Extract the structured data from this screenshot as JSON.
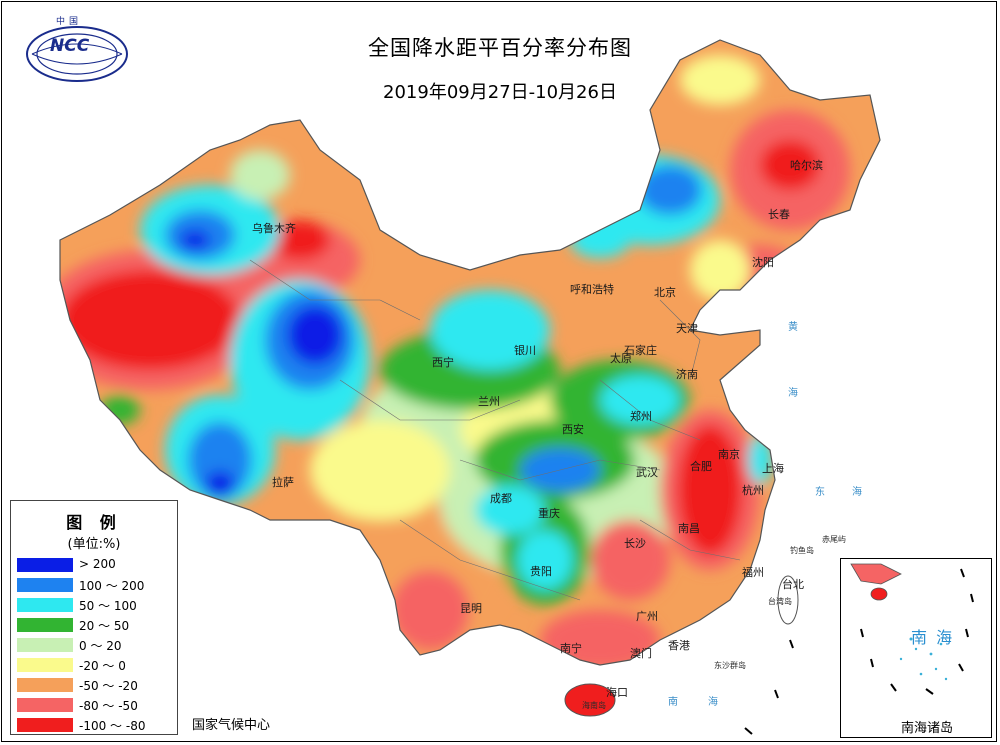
{
  "header": {
    "title": "全国降水距平百分率分布图",
    "subtitle": "2019年09月27日-10月26日"
  },
  "logo": {
    "label": "中国",
    "text": "NCC"
  },
  "legend": {
    "title": "图 例",
    "unit": "(单位:%)",
    "items": [
      {
        "label": "> 200",
        "color": "#0a1ee6"
      },
      {
        "label": "100 ～ 200",
        "color": "#1e82f0"
      },
      {
        "label": "50 ～ 100",
        "color": "#2ee8f0"
      },
      {
        "label": "20 ～ 50",
        "color": "#32b432"
      },
      {
        "label": "0 ～ 20",
        "color": "#c8f0b4"
      },
      {
        "label": "-20 ～ 0",
        "color": "#fafa8c"
      },
      {
        "label": "-50 ～ -20",
        "color": "#f5a05a"
      },
      {
        "label": "-80 ～ -50",
        "color": "#f56464"
      },
      {
        "label": "-100 ～ -80",
        "color": "#f01e1e"
      }
    ]
  },
  "source": "国家气候中心",
  "cities": [
    {
      "name": "乌鲁木齐"
    },
    {
      "name": "哈尔滨"
    },
    {
      "name": "长春"
    },
    {
      "name": "沈阳"
    },
    {
      "name": "北京"
    },
    {
      "name": "天津"
    },
    {
      "name": "呼和浩特"
    },
    {
      "name": "石家庄"
    },
    {
      "name": "太原"
    },
    {
      "name": "济南"
    },
    {
      "name": "银川"
    },
    {
      "name": "西宁"
    },
    {
      "name": "兰州"
    },
    {
      "name": "西安"
    },
    {
      "name": "郑州"
    },
    {
      "name": "合肥"
    },
    {
      "name": "南京"
    },
    {
      "name": "上海"
    },
    {
      "name": "杭州"
    },
    {
      "name": "武汉"
    },
    {
      "name": "成都"
    },
    {
      "name": "重庆"
    },
    {
      "name": "长沙"
    },
    {
      "name": "南昌"
    },
    {
      "name": "福州"
    },
    {
      "name": "台北"
    },
    {
      "name": "贵阳"
    },
    {
      "name": "昆明"
    },
    {
      "name": "拉萨"
    },
    {
      "name": "南宁"
    },
    {
      "name": "广州"
    },
    {
      "name": "香港"
    },
    {
      "name": "澳门"
    },
    {
      "name": "海口"
    }
  ],
  "seas": [
    {
      "name": "黄"
    },
    {
      "name": "海"
    },
    {
      "name": "东"
    },
    {
      "name": "海"
    },
    {
      "name": "南"
    },
    {
      "name": "海"
    }
  ],
  "islands": [
    {
      "name": "赤尾屿"
    },
    {
      "name": "钓鱼岛"
    },
    {
      "name": "台湾岛"
    },
    {
      "name": "东沙群岛"
    },
    {
      "name": "海南岛"
    }
  ],
  "inset": {
    "sea": "南 海",
    "title": "南海诸岛"
  }
}
